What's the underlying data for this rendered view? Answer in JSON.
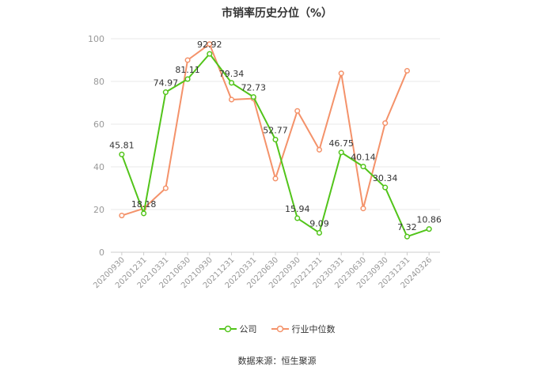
{
  "chart_data": {
    "type": "line",
    "title": "市销率历史分位（%）",
    "categories": [
      "20200930",
      "20201231",
      "20210331",
      "20210630",
      "20210930",
      "20211231",
      "20220331",
      "20220630",
      "20220930",
      "20221231",
      "20230331",
      "20230630",
      "20230930",
      "20231231",
      "20240326"
    ],
    "series": [
      {
        "name": "公司",
        "color": "#52c41a",
        "values": [
          45.81,
          18.18,
          74.97,
          81.11,
          92.92,
          79.34,
          72.73,
          52.77,
          15.94,
          9.09,
          46.75,
          40.14,
          30.34,
          7.32,
          10.86
        ],
        "labels": [
          "45.81",
          "18.18",
          "74.97",
          "81.11",
          "92.92",
          "79.34",
          "72.73",
          "52.77",
          "15.94",
          "9.09",
          "46.75",
          "40.14",
          "30.34",
          "7.32",
          "10.86"
        ]
      },
      {
        "name": "行业中位数",
        "color": "#f4926a",
        "values": [
          17.2,
          20.5,
          30.0,
          90.0,
          97.5,
          71.5,
          72.0,
          34.5,
          66.2,
          48.0,
          83.8,
          20.5,
          60.5,
          85.0,
          null
        ],
        "labels": []
      }
    ],
    "yticks": [
      "0",
      "20",
      "40",
      "60",
      "80",
      "100"
    ],
    "ylim": [
      0,
      100
    ],
    "grid": true,
    "legend_position": "bottom-center"
  },
  "source_text": "数据来源：恒生聚源"
}
